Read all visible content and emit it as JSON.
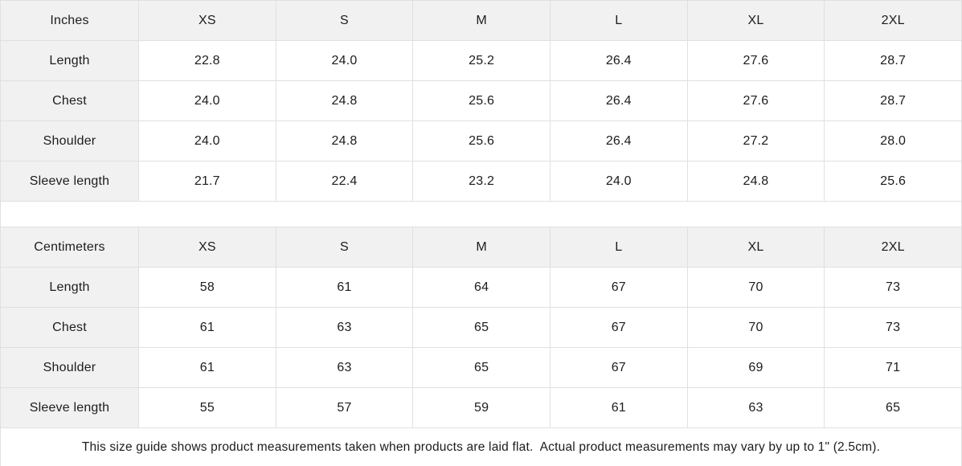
{
  "tables": [
    {
      "id": "inches",
      "header": [
        "Inches",
        "XS",
        "S",
        "M",
        "L",
        "XL",
        "2XL"
      ],
      "rows": [
        {
          "label": "Length",
          "values": [
            "22.8",
            "24.0",
            "25.2",
            "26.4",
            "27.6",
            "28.7"
          ]
        },
        {
          "label": "Chest",
          "values": [
            "24.0",
            "24.8",
            "25.6",
            "26.4",
            "27.6",
            "28.7"
          ]
        },
        {
          "label": "Shoulder",
          "values": [
            "24.0",
            "24.8",
            "25.6",
            "26.4",
            "27.2",
            "28.0"
          ]
        },
        {
          "label": "Sleeve length",
          "values": [
            "21.7",
            "22.4",
            "23.2",
            "24.0",
            "24.8",
            "25.6"
          ]
        }
      ]
    },
    {
      "id": "centimeters",
      "header": [
        "Centimeters",
        "XS",
        "S",
        "M",
        "L",
        "XL",
        "2XL"
      ],
      "rows": [
        {
          "label": "Length",
          "values": [
            "58",
            "61",
            "64",
            "67",
            "70",
            "73"
          ]
        },
        {
          "label": "Chest",
          "values": [
            "61",
            "63",
            "65",
            "67",
            "70",
            "73"
          ]
        },
        {
          "label": "Shoulder",
          "values": [
            "61",
            "63",
            "65",
            "67",
            "69",
            "71"
          ]
        },
        {
          "label": "Sleeve length",
          "values": [
            "55",
            "57",
            "59",
            "61",
            "63",
            "65"
          ]
        }
      ]
    }
  ],
  "footer": {
    "note": "This size guide shows product measurements taken when products are laid flat.  Actual product measurements may vary by up to 1\" (2.5cm)."
  },
  "colors": {
    "header_bg": "#f1f1f1",
    "border": "#e0e0e0",
    "text": "#1c1c1c"
  }
}
